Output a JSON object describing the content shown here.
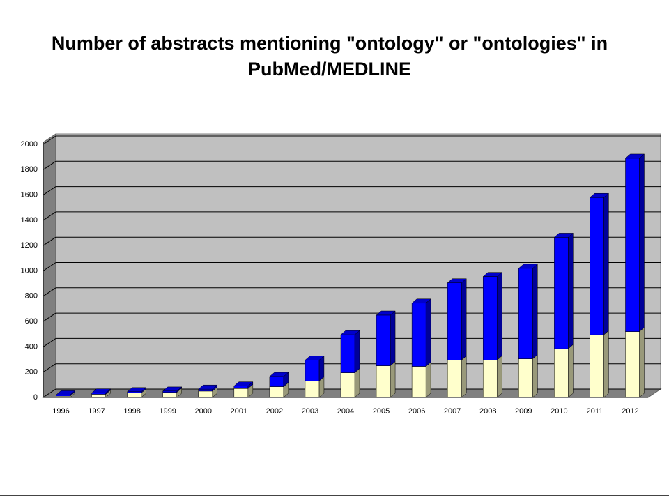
{
  "chart_data": {
    "type": "bar",
    "stacked": true,
    "title": "Number of abstracts mentioning \"ontology\" or \"ontologies\" in PubMed/MEDLINE",
    "categories": [
      "1996",
      "1997",
      "1998",
      "1999",
      "2000",
      "2001",
      "2002",
      "2003",
      "2004",
      "2005",
      "2006",
      "2007",
      "2008",
      "2009",
      "2010",
      "2011",
      "2012"
    ],
    "series": [
      {
        "color": "#ffffcc",
        "values": [
          10,
          25,
          35,
          40,
          50,
          70,
          85,
          130,
          195,
          250,
          245,
          295,
          295,
          305,
          385,
          495,
          520
        ]
      },
      {
        "color": "#0000ff",
        "values": [
          10,
          10,
          10,
          10,
          15,
          20,
          80,
          165,
          300,
          400,
          500,
          610,
          660,
          715,
          880,
          1085,
          1370
        ]
      }
    ],
    "ylim": [
      0,
      2000
    ],
    "yticks": [
      0,
      200,
      400,
      600,
      800,
      1000,
      1200,
      1400,
      1600,
      1800,
      2000
    ],
    "grid": true
  }
}
